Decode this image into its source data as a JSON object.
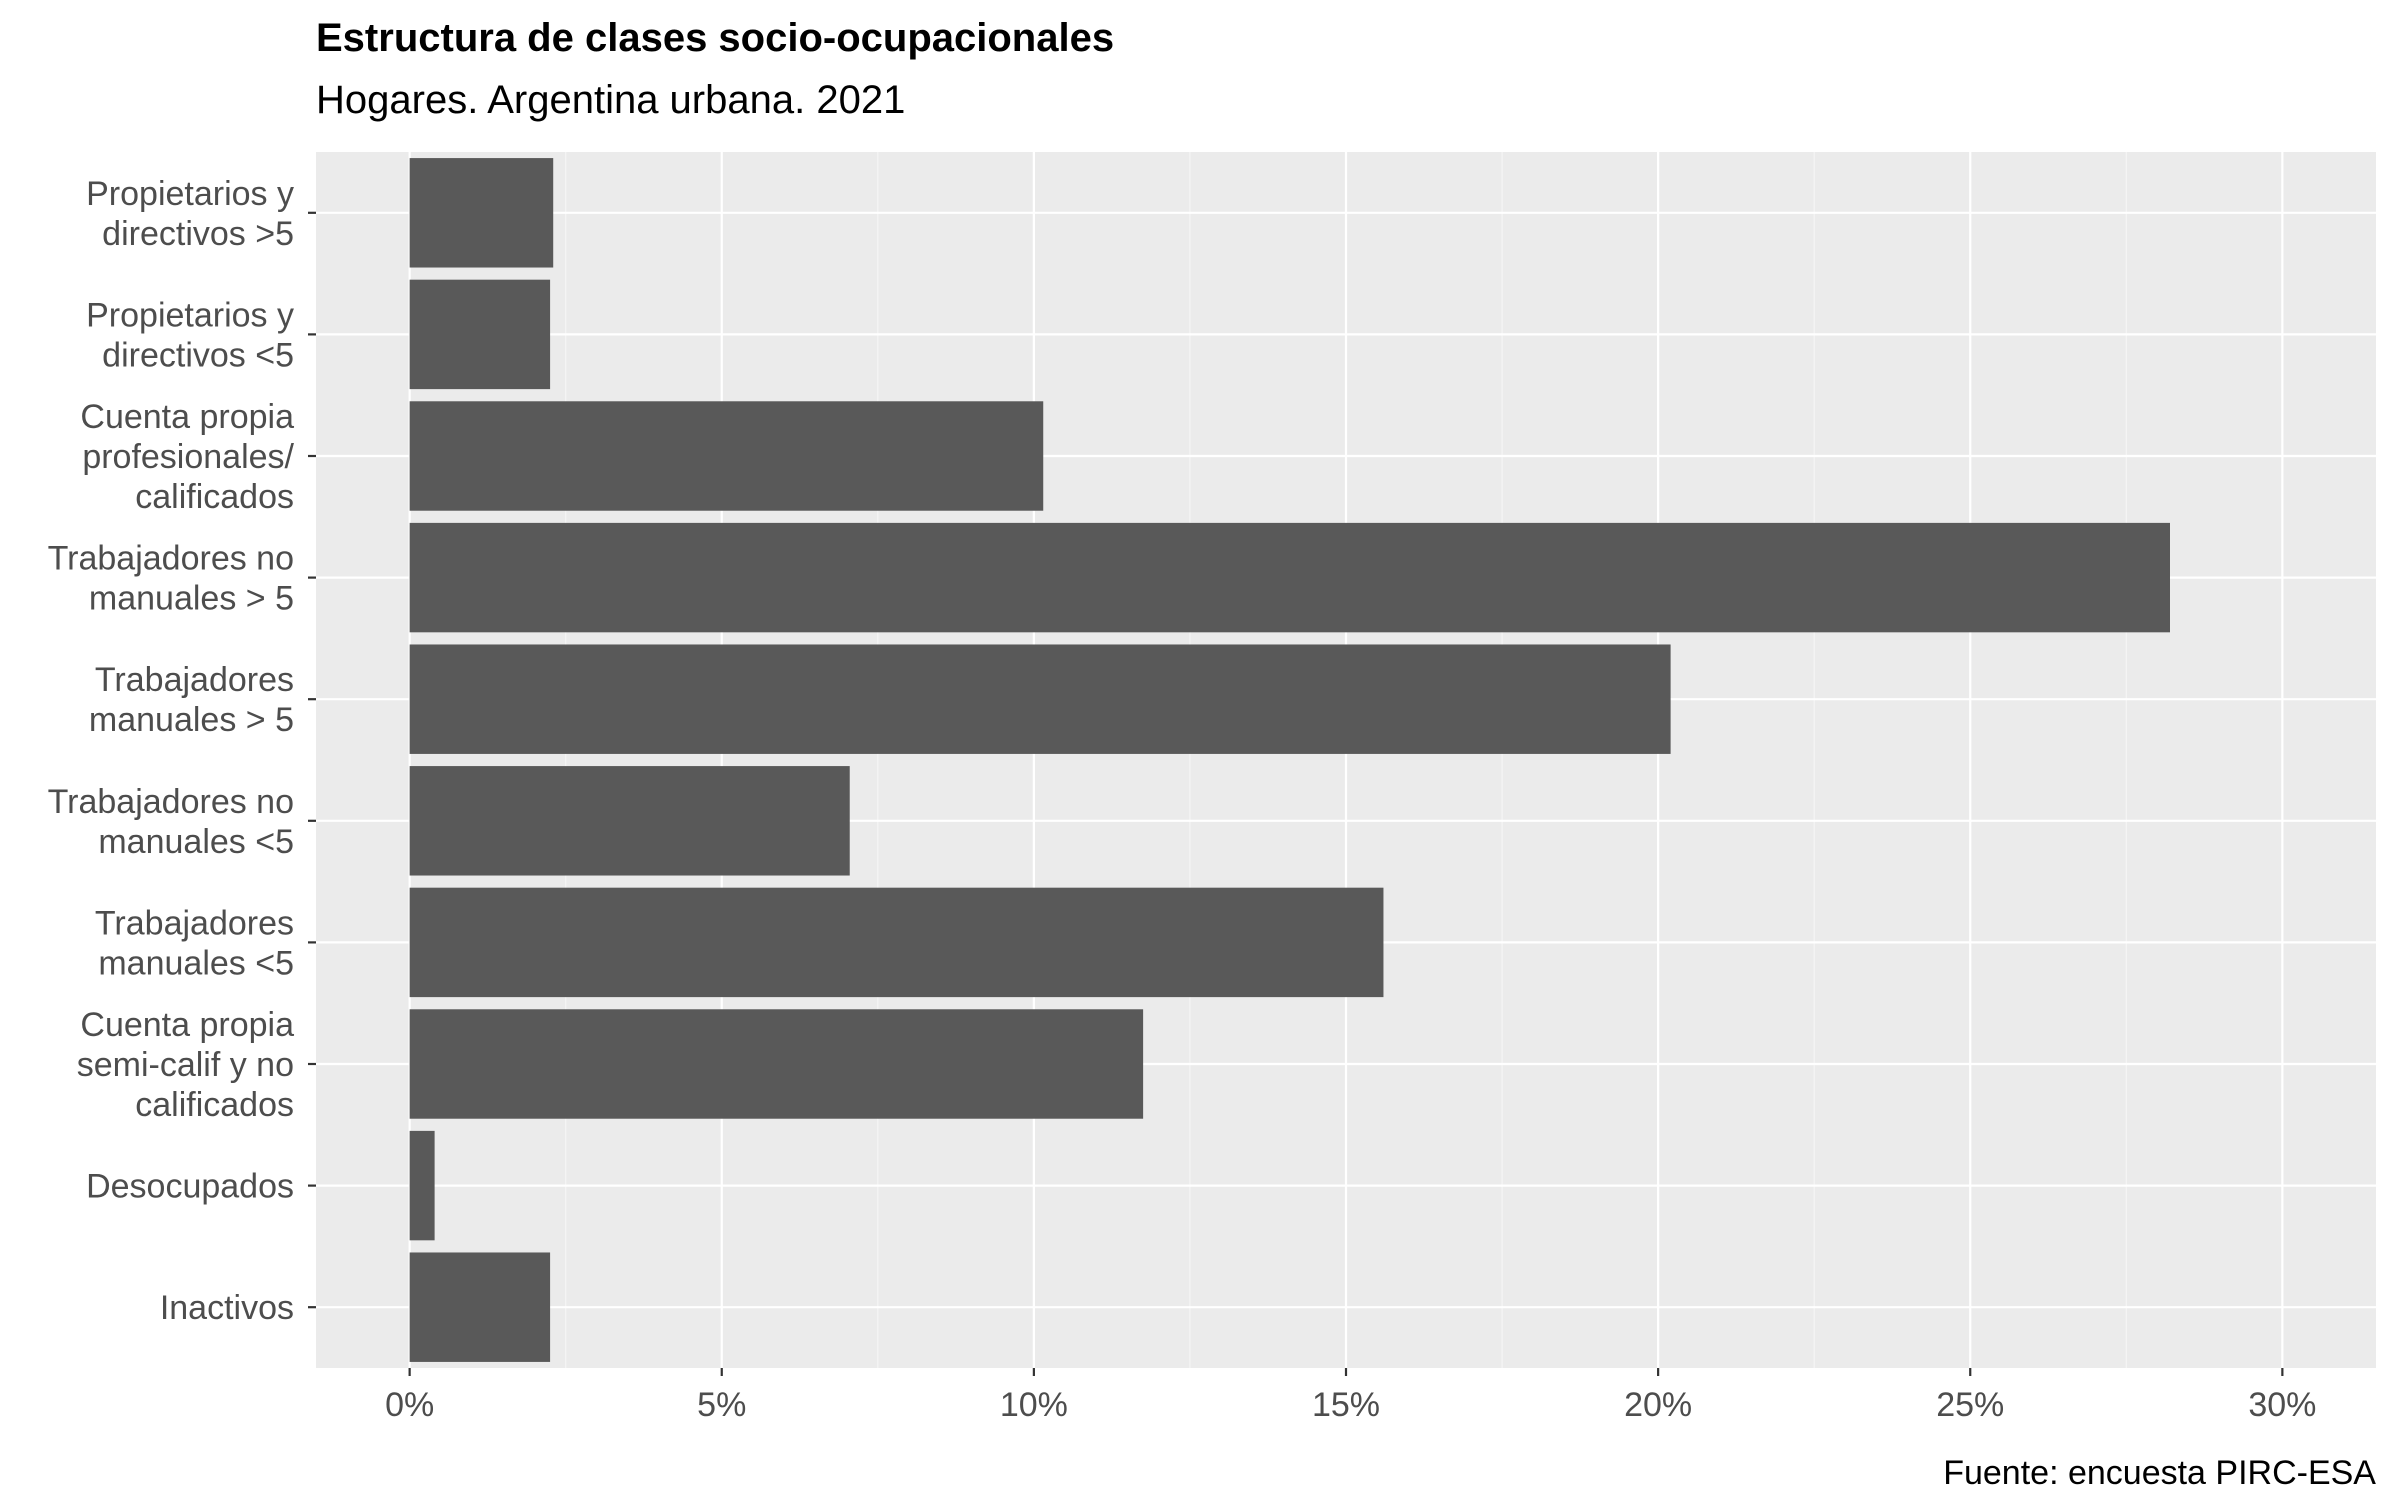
{
  "title": "Estructura de clases socio-ocupacionales",
  "subtitle": "Hogares. Argentina urbana. 2021",
  "caption": "Fuente: encuesta PIRC-ESA",
  "colors": {
    "panel": "#ebebeb",
    "grid_major": "#ffffff",
    "bar": "#595959",
    "tick_text": "#4d4d4d"
  },
  "chart_data": {
    "type": "bar",
    "orientation": "horizontal",
    "categories": [
      "Propietarios y\ndirectivos >5",
      "Propietarios y\ndirectivos <5",
      "Cuenta propia\nprofesionales/\ncalificados",
      "Trabajadores no\nmanuales > 5",
      "Trabajadores\nmanuales > 5",
      "Trabajadores no\nmanuales <5",
      "Trabajadores\nmanuales <5",
      "Cuenta propia\nsemi-calif y no\ncalificados",
      "Desocupados",
      "Inactivos"
    ],
    "values": [
      2.3,
      2.25,
      10.15,
      28.2,
      20.2,
      7.05,
      15.6,
      11.75,
      0.4,
      2.25
    ],
    "xlim": [
      -1.5,
      31.5
    ],
    "xticks": [
      0,
      5,
      10,
      15,
      20,
      25,
      30
    ],
    "xtick_labels": [
      "0%",
      "5%",
      "10%",
      "15%",
      "20%",
      "25%",
      "30%"
    ],
    "xlabel": "",
    "ylabel": "",
    "grid": true,
    "legend": "none"
  }
}
